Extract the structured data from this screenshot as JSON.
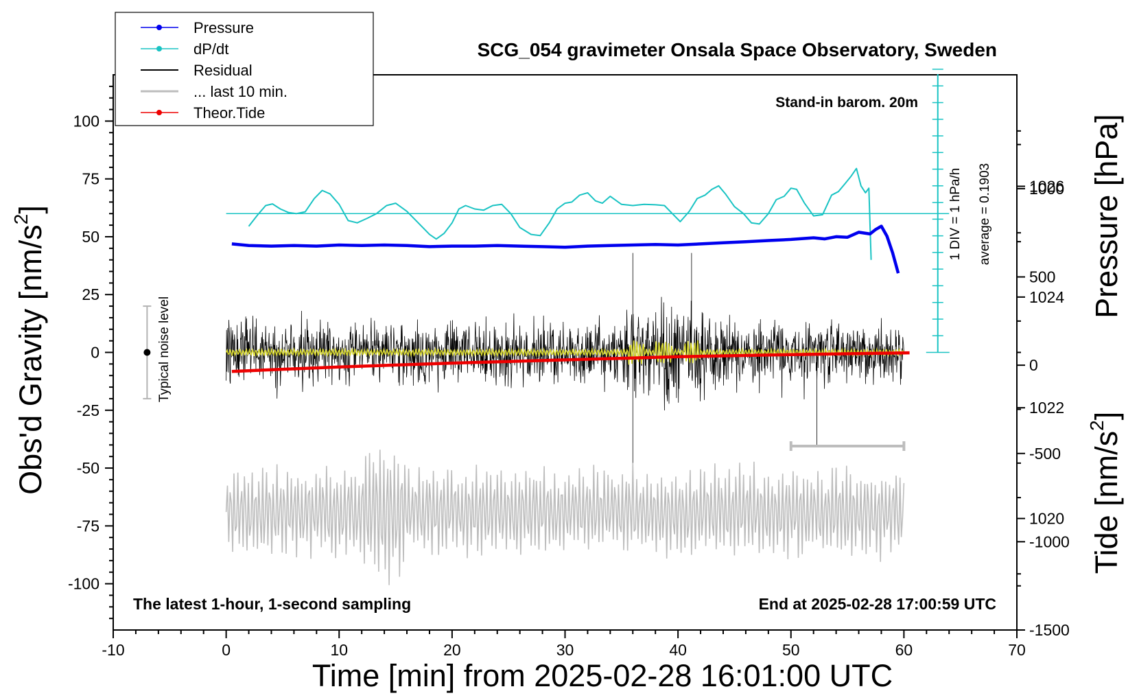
{
  "colors": {
    "pressure": "#0000ee",
    "dpdt": "#19c3c3",
    "residual": "#000000",
    "last10": "#bdbdbd",
    "tide": "#ee0000",
    "smooth": "#d8d830",
    "noise": "#b3b3b3"
  },
  "chart_data": {
    "type": "line",
    "title": "SCG_054 gravimeter Onsala Space Observatory, Sweden",
    "xlabel": "Time [min] from 2025-02-28 16:01:00 UTC",
    "ylabel_left": "Obs'd Gravity [nm/s",
    "ylabel_left_close": "]",
    "ylabel_pressure": "Pressure [hPa]",
    "ylabel_tide": "Tide [nm/s",
    "ylabel_tide_close": "]",
    "unit_sup": "2",
    "xlim": [
      -10,
      70
    ],
    "ylim_left": [
      -120,
      120
    ],
    "ylim_pressure": [
      1017.986,
      1028.014
    ],
    "ylim_tide": [
      -1500,
      1645
    ],
    "x_ticks": [
      -10,
      0,
      10,
      20,
      30,
      40,
      50,
      60,
      70
    ],
    "x_tick_labels": [
      "-10",
      "0",
      "10",
      "20",
      "30",
      "40",
      "50",
      "60",
      "70"
    ],
    "y_left_ticks": [
      100,
      75,
      50,
      25,
      0,
      -25,
      -50,
      -75,
      -100
    ],
    "y_left_tick_labels": [
      "100",
      "75",
      "50",
      "25",
      "0",
      "-25",
      "-50",
      "-75",
      "-100"
    ],
    "y_pressure_ticks": [
      1026,
      1024,
      1022,
      1020
    ],
    "y_pressure_tick_labels": [
      "1026",
      "1024",
      "1022",
      "1020"
    ],
    "y_tide_ticks": [
      1000,
      500,
      0,
      -500,
      -1000,
      -1500
    ],
    "y_tide_tick_labels": [
      "1000",
      "500",
      "0",
      "-500",
      "-1000",
      "-1500"
    ],
    "annotations": {
      "barometer": "Stand-in barom. 20m",
      "div": "1 DIV = 1 hPa/h",
      "average": "average = 0.1903",
      "noise": "Typical noise level",
      "latest": "The latest 1-hour, 1-second sampling",
      "end": "End at 2025-02-28 17:00:59 UTC"
    },
    "legend": {
      "position": "top-left",
      "entries": [
        "Pressure",
        "dP/dt",
        "Residual",
        "... last 10 min.",
        "Theor.Tide"
      ]
    },
    "noise_level": {
      "x": -7,
      "center": 0,
      "low": -20,
      "high": 20
    },
    "dpdt_scale": {
      "x": 63,
      "zero_y": 0,
      "divisions_y": [
        0,
        7.2,
        14.4,
        21.6,
        28.8,
        36.0,
        43.2,
        50.4,
        57.6,
        64.8,
        72.0,
        79.2,
        86.4,
        93.6,
        100.8,
        108.0,
        115.2,
        122.4
      ],
      "baseline_y": 60,
      "baseline_x_range": [
        0,
        64
      ]
    },
    "last10_bar": {
      "x_start": 50,
      "x_end": 60,
      "y": -40.5
    },
    "series": [
      {
        "name": "Pressure",
        "axis": "pressure",
        "x": [
          0.5,
          2,
          4,
          6,
          8,
          10,
          12,
          14,
          16,
          18,
          20,
          22,
          24,
          26,
          28,
          30,
          32,
          34,
          36,
          38,
          40,
          42,
          44,
          46,
          48,
          50,
          52,
          53,
          54,
          55,
          56,
          57,
          57.5,
          58,
          58.5,
          59,
          59.5
        ],
        "y": [
          1024.96,
          1024.93,
          1024.92,
          1024.93,
          1024.92,
          1024.94,
          1024.93,
          1024.94,
          1024.93,
          1024.91,
          1024.92,
          1024.92,
          1024.93,
          1024.92,
          1024.91,
          1024.9,
          1024.92,
          1024.93,
          1024.94,
          1024.95,
          1024.94,
          1024.96,
          1024.98,
          1025.0,
          1025.02,
          1025.04,
          1025.07,
          1025.05,
          1025.09,
          1025.08,
          1025.17,
          1025.14,
          1025.22,
          1025.28,
          1025.1,
          1024.8,
          1024.43
        ]
      },
      {
        "name": "dP/dt",
        "axis": "left",
        "x": [
          2,
          2.8,
          3.5,
          4.1,
          4.8,
          5.5,
          6.2,
          7,
          7.8,
          8.5,
          9.2,
          10,
          10.8,
          11.6,
          12.5,
          13.3,
          14.2,
          15,
          16,
          17,
          18,
          18.6,
          19.3,
          20,
          20.6,
          21.2,
          22,
          22.8,
          23.6,
          24.4,
          25.2,
          26,
          27,
          27.8,
          28.6,
          29.3,
          30,
          30.6,
          31.3,
          32,
          32.7,
          33.3,
          34,
          35,
          36,
          37,
          38,
          38.8,
          39.5,
          40.2,
          41,
          41.7,
          42.4,
          43,
          43.6,
          44.2,
          45,
          45.8,
          46.5,
          47.2,
          48,
          48.7,
          49.4,
          50,
          50.5,
          51.2,
          52,
          52.8,
          53.6,
          54.2,
          54.8,
          55.3,
          55.8,
          56.2,
          56.6,
          56.9,
          57.1
        ],
        "y": [
          54.5,
          59.5,
          63.5,
          64.2,
          62.0,
          60.5,
          60.0,
          60.8,
          66.5,
          70.0,
          68.5,
          64.0,
          57.0,
          56.0,
          58.0,
          60.0,
          63.5,
          64.5,
          61.0,
          56.0,
          51.0,
          49.0,
          51.5,
          56.0,
          62.0,
          63.5,
          62.0,
          61.5,
          63.5,
          64.0,
          60.0,
          54.0,
          51.0,
          50.5,
          56.0,
          62.0,
          64.5,
          65.0,
          68.0,
          69.0,
          65.5,
          64.5,
          67.5,
          64.0,
          63.5,
          64.0,
          63.8,
          63.5,
          60.0,
          56.5,
          61.0,
          66.5,
          68.0,
          70.5,
          72.0,
          68.5,
          63.0,
          60.0,
          56.0,
          55.5,
          60.0,
          66.0,
          67.5,
          71.0,
          70.5,
          64.5,
          59.0,
          59.5,
          68.0,
          69.5,
          73.0,
          76.0,
          79.5,
          72.0,
          69.0,
          71.0,
          40.0
        ]
      },
      {
        "name": "Residual",
        "axis": "left",
        "x_range": [
          0,
          60
        ],
        "band": [
          -28,
          29
        ],
        "extremes": [
          [
            36,
            43
          ],
          [
            41.2,
            43
          ],
          [
            36,
            -53
          ],
          [
            52.3,
            -40
          ]
        ]
      },
      {
        "name": "... last 10 min.",
        "axis": "left",
        "x_range": [
          0,
          60
        ],
        "center": -69,
        "band": [
          -104,
          -40
        ]
      },
      {
        "name": "Theor.Tide",
        "axis": "tide",
        "x": [
          0.5,
          10,
          20,
          30,
          40,
          50,
          60.5
        ],
        "y": [
          -35,
          -10,
          12,
          30,
          48,
          60,
          70
        ]
      }
    ]
  }
}
